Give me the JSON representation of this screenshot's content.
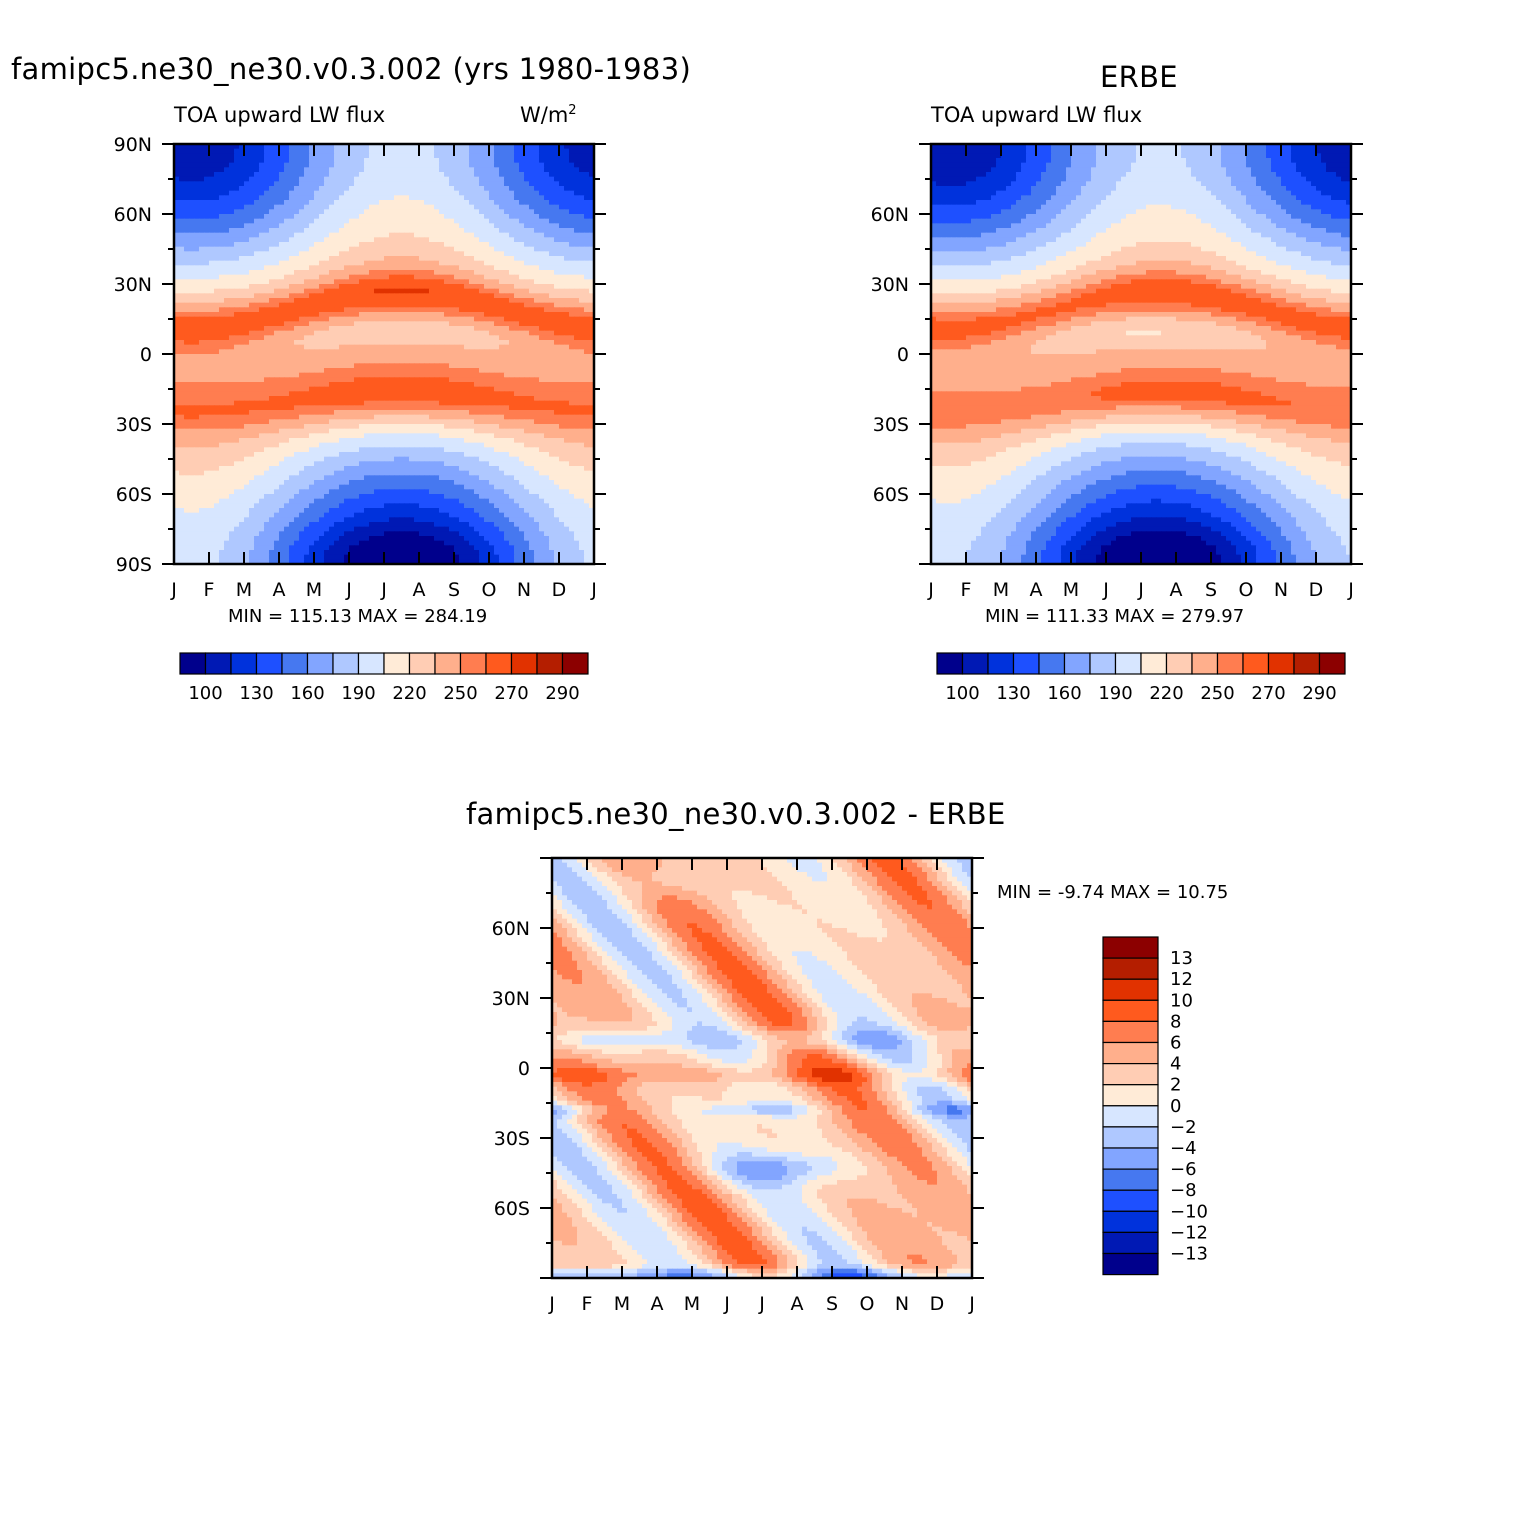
{
  "figure": {
    "panel1": {
      "title": "famipc5.ne30_ne30.v0.3.002 (yrs 1980-1983)",
      "left_label": "TOA upward LW flux",
      "units_prefix": "W/m",
      "units_sup": "2",
      "minmax": "MIN = 115.13 MAX = 284.19"
    },
    "panel2": {
      "title": "ERBE",
      "left_label": "TOA upward LW flux",
      "minmax": "MIN = 111.33 MAX = 279.97"
    },
    "panel3": {
      "title": "famipc5.ne30_ne30.v0.3.002 - ERBE",
      "minmax": "MIN =  -9.74 MAX =  10.75"
    }
  },
  "colors": {
    "flux_scale": [
      "#00008c",
      "#0019b4",
      "#0032dc",
      "#1e50ff",
      "#4678f0",
      "#82a5ff",
      "#afc8ff",
      "#d7e6ff",
      "#ffebd7",
      "#ffcdb4",
      "#ffaf8c",
      "#ff7d50",
      "#ff5a1e",
      "#e13200",
      "#b41e00",
      "#8c0000"
    ],
    "diff_scale": [
      "#00008c",
      "#0019b4",
      "#0032dc",
      "#1e50ff",
      "#4678f0",
      "#82a5ff",
      "#afc8ff",
      "#d7e6ff",
      "#ffebd7",
      "#ffcdb4",
      "#ffaf8c",
      "#ff7d50",
      "#ff5a1e",
      "#e13200",
      "#b41e00",
      "#8c0000"
    ]
  },
  "chart_data": [
    {
      "type": "heatmap",
      "title": "famipc5.ne30_ne30.v0.3.002 (yrs 1980-1983)",
      "subtitle": "TOA upward LW flux",
      "units": "W/m2",
      "x_tick_labels": [
        "J",
        "F",
        "M",
        "A",
        "M",
        "J",
        "J",
        "A",
        "S",
        "O",
        "N",
        "D",
        "J"
      ],
      "y_tick_labels": [
        "90N",
        "60N",
        "30N",
        "0",
        "30S",
        "60S",
        "90S"
      ],
      "y_ticks": [
        90,
        60,
        30,
        0,
        -30,
        -60,
        -90
      ],
      "ylim": [
        -90,
        90
      ],
      "xlim": [
        0,
        12
      ],
      "colorbar_labels": [
        "100",
        "130",
        "160",
        "190",
        "220",
        "250",
        "270",
        "290"
      ],
      "levels": [
        100,
        115,
        130,
        145,
        160,
        175,
        190,
        205,
        220,
        235,
        250,
        260,
        270,
        280,
        290
      ],
      "min": 115.13,
      "max": 284.19
    },
    {
      "type": "heatmap",
      "title": "ERBE",
      "subtitle": "TOA upward LW flux",
      "x_tick_labels": [
        "J",
        "F",
        "M",
        "A",
        "M",
        "J",
        "J",
        "A",
        "S",
        "O",
        "N",
        "D",
        "J"
      ],
      "y_tick_labels": [
        "60N",
        "30N",
        "0",
        "30S",
        "60S"
      ],
      "y_ticks": [
        60,
        30,
        0,
        -30,
        -60
      ],
      "ylim": [
        -90,
        90
      ],
      "xlim": [
        0,
        12
      ],
      "colorbar_labels": [
        "100",
        "130",
        "160",
        "190",
        "220",
        "250",
        "270",
        "290"
      ],
      "levels": [
        100,
        115,
        130,
        145,
        160,
        175,
        190,
        205,
        220,
        235,
        250,
        260,
        270,
        280,
        290
      ],
      "min": 111.33,
      "max": 279.97
    },
    {
      "type": "heatmap",
      "title": "famipc5.ne30_ne30.v0.3.002 - ERBE",
      "x_tick_labels": [
        "J",
        "F",
        "M",
        "A",
        "M",
        "J",
        "J",
        "A",
        "S",
        "O",
        "N",
        "D",
        "J"
      ],
      "y_tick_labels": [
        "60N",
        "30N",
        "0",
        "30S",
        "60S"
      ],
      "y_ticks": [
        60,
        30,
        0,
        -30,
        -60
      ],
      "ylim": [
        -90,
        90
      ],
      "xlim": [
        0,
        12
      ],
      "colorbar_labels": [
        "13",
        "12",
        "10",
        "8",
        "6",
        "4",
        "2",
        "0",
        "-2",
        "-4",
        "-6",
        "-8",
        "-10",
        "-12",
        "-13"
      ],
      "levels": [
        -13,
        -12,
        -10,
        -8,
        -6,
        -4,
        -2,
        0,
        2,
        4,
        6,
        8,
        10,
        12,
        13
      ],
      "min": -9.74,
      "max": 10.75
    }
  ]
}
